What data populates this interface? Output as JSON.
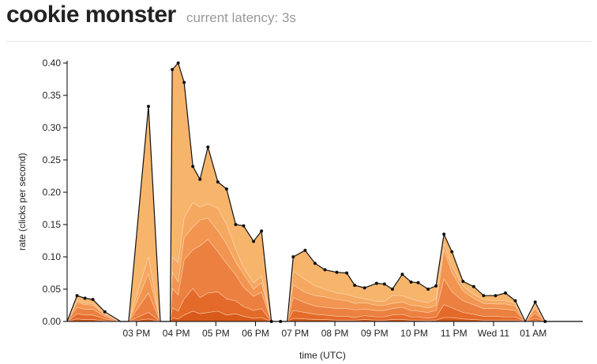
{
  "header": {
    "title": "cookie monster",
    "latency_label": "current latency:",
    "latency_value": "3s"
  },
  "chart_data": {
    "type": "area",
    "stacked": true,
    "xlabel": "time (UTC)",
    "ylabel": "rate (clicks per second)",
    "ylim": [
      0,
      0.4
    ],
    "yticks": [
      "0.00",
      "0.05",
      "0.10",
      "0.15",
      "0.20",
      "0.25",
      "0.30",
      "0.35",
      "0.40"
    ],
    "xticks": [
      {
        "label": "03 PM",
        "x": 3
      },
      {
        "label": "04 PM",
        "x": 4
      },
      {
        "label": "05 PM",
        "x": 5
      },
      {
        "label": "06 PM",
        "x": 6
      },
      {
        "label": "07 PM",
        "x": 7
      },
      {
        "label": "08 PM",
        "x": 8
      },
      {
        "label": "09 PM",
        "x": 9
      },
      {
        "label": "10 PM",
        "x": 10
      },
      {
        "label": "11 PM",
        "x": 11
      },
      {
        "label": "Wed 11",
        "x": 12
      },
      {
        "label": "01 AM",
        "x": 13
      }
    ],
    "xlim": [
      1.25,
      14.25
    ],
    "x": [
      1.25,
      1.5,
      1.7,
      1.9,
      2.2,
      2.6,
      2.8,
      3.3,
      3.6,
      3.85,
      3.9,
      4.05,
      4.2,
      4.42,
      4.6,
      4.8,
      5.05,
      5.27,
      5.5,
      5.7,
      5.95,
      6.15,
      6.4,
      6.63,
      6.8,
      6.95,
      7.25,
      7.5,
      7.75,
      8.05,
      8.3,
      8.5,
      8.75,
      9.05,
      9.25,
      9.45,
      9.7,
      9.92,
      10.1,
      10.35,
      10.55,
      10.75,
      10.95,
      11.23,
      11.5,
      11.75,
      12.05,
      12.3,
      12.55,
      12.8,
      13.05,
      13.3,
      13.55,
      13.8,
      14.25
    ],
    "colors": [
      "#d85a1a",
      "#e46a2a",
      "#ec8040",
      "#f29550",
      "#f5a860",
      "#f7b56c"
    ],
    "series": [
      {
        "values": [
          0,
          0.004,
          0.003,
          0.003,
          0.001,
          0,
          0,
          0.004,
          0,
          0,
          0.006,
          0.004,
          0.01,
          0.016,
          0.012,
          0.014,
          0.016,
          0.01,
          0.012,
          0.008,
          0.005,
          0.006,
          0,
          0,
          0,
          0.005,
          0.004,
          0.003,
          0.003,
          0.002,
          0.002,
          0.002,
          0.003,
          0.002,
          0.002,
          0.003,
          0.003,
          0.002,
          0.002,
          0.001,
          0.002,
          0.006,
          0.006,
          0.004,
          0.003,
          0.002,
          0.002,
          0.002,
          0.002,
          0,
          0.001,
          0,
          0,
          0,
          0
        ]
      },
      {
        "values": [
          0,
          0.008,
          0.007,
          0.007,
          0.003,
          0,
          0,
          0.01,
          0,
          0,
          0.015,
          0.012,
          0.025,
          0.035,
          0.025,
          0.03,
          0.03,
          0.025,
          0.02,
          0.015,
          0.012,
          0.014,
          0,
          0,
          0,
          0.012,
          0.01,
          0.008,
          0.007,
          0.006,
          0.006,
          0.004,
          0.006,
          0.005,
          0.005,
          0.007,
          0.008,
          0.005,
          0.005,
          0.004,
          0.005,
          0.02,
          0.015,
          0.01,
          0.008,
          0.006,
          0.006,
          0.005,
          0.005,
          0,
          0.004,
          0,
          0,
          0,
          0
        ]
      },
      {
        "values": [
          0,
          0.01,
          0.009,
          0.009,
          0.004,
          0,
          0,
          0.03,
          0,
          0,
          0.03,
          0.025,
          0.06,
          0.06,
          0.08,
          0.083,
          0.062,
          0.055,
          0.04,
          0.03,
          0.022,
          0.025,
          0,
          0,
          0,
          0.02,
          0.015,
          0.013,
          0.012,
          0.012,
          0.012,
          0.012,
          0.01,
          0.01,
          0.01,
          0.01,
          0.011,
          0.01,
          0.009,
          0.009,
          0.01,
          0.04,
          0.025,
          0.018,
          0.015,
          0.012,
          0.012,
          0.012,
          0.01,
          0,
          0.008,
          0,
          0,
          0,
          0
        ]
      },
      {
        "values": [
          0,
          0.008,
          0.007,
          0.006,
          0.003,
          0,
          0,
          0.03,
          0,
          0,
          0.025,
          0.02,
          0.035,
          0.035,
          0.04,
          0.033,
          0.032,
          0.03,
          0.02,
          0.02,
          0.011,
          0.015,
          0,
          0,
          0,
          0.02,
          0.016,
          0.016,
          0.016,
          0.014,
          0.012,
          0.01,
          0.01,
          0.008,
          0.008,
          0.008,
          0.008,
          0.008,
          0.008,
          0.007,
          0.008,
          0.045,
          0.03,
          0.015,
          0.01,
          0.008,
          0.007,
          0.008,
          0.007,
          0,
          0.007,
          0,
          0,
          0,
          0
        ]
      },
      {
        "values": [
          0,
          0.003,
          0.003,
          0.003,
          0.002,
          0,
          0,
          0.026,
          0,
          0,
          0.024,
          0.03,
          0.03,
          0.038,
          0.02,
          0.022,
          0.035,
          0.03,
          0.02,
          0.01,
          0.01,
          0.01,
          0,
          0,
          0,
          0.021,
          0.02,
          0.015,
          0.012,
          0.01,
          0.01,
          0.01,
          0.006,
          0.006,
          0.006,
          0.012,
          0.01,
          0.01,
          0.008,
          0.008,
          0.01,
          0.01,
          0.01,
          0.008,
          0.006,
          0.006,
          0.005,
          0.005,
          0.004,
          0,
          0.004,
          0,
          0,
          0,
          0
        ]
      },
      {
        "values": [
          0,
          0.007,
          0.007,
          0.006,
          0.002,
          0,
          0,
          0.233,
          0,
          0,
          0.29,
          0.309,
          0.21,
          0.056,
          0.043,
          0.088,
          0.041,
          0.055,
          0.038,
          0.065,
          0.064,
          0.07,
          0,
          0,
          0,
          0.022,
          0.045,
          0.035,
          0.03,
          0.032,
          0.033,
          0.018,
          0.017,
          0.028,
          0.027,
          0.01,
          0.033,
          0.026,
          0.028,
          0.021,
          0.02,
          0.014,
          0.022,
          0.007,
          0.012,
          0.006,
          0.008,
          0.012,
          0.004,
          0,
          0.006,
          0,
          0,
          0,
          0
        ]
      }
    ],
    "totals": [
      0,
      0.04,
      0.036,
      0.034,
      0.015,
      0,
      0,
      0.333,
      0,
      0,
      0.39,
      0.4,
      0.37,
      0.24,
      0.22,
      0.27,
      0.216,
      0.205,
      0.15,
      0.148,
      0.124,
      0.14,
      0,
      0,
      0,
      0.1,
      0.11,
      0.09,
      0.08,
      0.076,
      0.075,
      0.056,
      0.052,
      0.059,
      0.058,
      0.05,
      0.073,
      0.061,
      0.06,
      0.05,
      0.055,
      0.135,
      0.108,
      0.062,
      0.054,
      0.04,
      0.04,
      0.044,
      0.032,
      0,
      0.03,
      0,
      0,
      0,
      0
    ],
    "markers": [
      1.5,
      1.7,
      1.9,
      2.2,
      3.3,
      3.9,
      4.05,
      4.2,
      4.42,
      4.6,
      4.8,
      5.05,
      5.27,
      5.5,
      5.7,
      5.95,
      6.15,
      6.4,
      6.63,
      6.95,
      7.25,
      7.5,
      7.75,
      8.05,
      8.3,
      8.5,
      8.75,
      9.05,
      9.25,
      9.45,
      9.7,
      9.92,
      10.1,
      10.35,
      10.55,
      10.75,
      10.95,
      11.23,
      11.5,
      11.75,
      12.05,
      12.3,
      12.55,
      13.05,
      13.3
    ]
  }
}
